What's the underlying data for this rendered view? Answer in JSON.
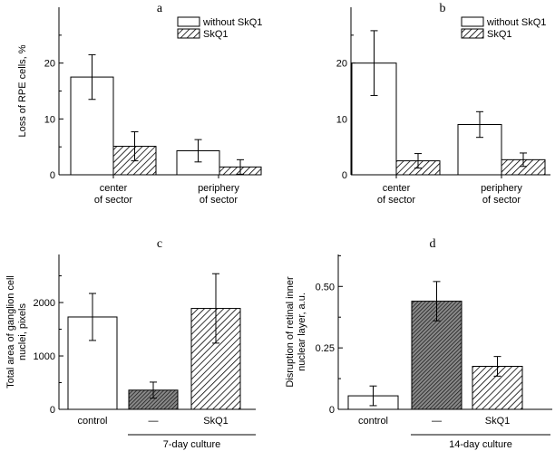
{
  "chart_data": [
    {
      "id": "a",
      "type": "bar",
      "panel_label": "a",
      "ylabel": "Loss of RPE cells, %",
      "ylim": [
        0,
        30
      ],
      "yticks": [
        0,
        10,
        20
      ],
      "categories": [
        [
          "center",
          "of sector"
        ],
        [
          "periphery",
          "of sector"
        ]
      ],
      "series": [
        {
          "name": "without SkQ1",
          "pattern": "open",
          "values": [
            17.5,
            4.3
          ],
          "errors": [
            4.0,
            2.0
          ]
        },
        {
          "name": "SkQ1",
          "pattern": "hatch",
          "values": [
            5.1,
            1.4
          ],
          "errors": [
            2.6,
            1.3
          ]
        }
      ],
      "legend": "top-right",
      "legend_items": [
        "without SkQ1",
        "SkQ1"
      ]
    },
    {
      "id": "b",
      "type": "bar",
      "panel_label": "b",
      "ylabel": "",
      "ylim": [
        0,
        30
      ],
      "yticks": [
        0,
        10,
        20
      ],
      "categories": [
        [
          "center",
          "of sector"
        ],
        [
          "periphery",
          "of sector"
        ]
      ],
      "series": [
        {
          "name": "without SkQ1",
          "pattern": "open",
          "values": [
            20.0,
            9.0
          ],
          "errors": [
            5.8,
            2.3
          ]
        },
        {
          "name": "SkQ1",
          "pattern": "hatch",
          "values": [
            2.5,
            2.7
          ],
          "errors": [
            1.3,
            1.2
          ]
        }
      ],
      "legend": "top-right",
      "legend_items": [
        "without SkQ1",
        "SkQ1"
      ]
    },
    {
      "id": "c",
      "type": "bar",
      "panel_label": "c",
      "ylabel": [
        "Total area of ganglion cell",
        "nuclei, pixels"
      ],
      "ylim": [
        0,
        2900
      ],
      "yticks": [
        0,
        1000,
        2000
      ],
      "categories": [
        "control",
        "—",
        "SkQ1"
      ],
      "bar_patterns": [
        "open",
        "dense",
        "hatch"
      ],
      "values": [
        1730,
        360,
        1890
      ],
      "errors": [
        440,
        150,
        650
      ],
      "group_label": "7-day culture"
    },
    {
      "id": "d",
      "type": "bar",
      "panel_label": "d",
      "ylabel": [
        "Disruption of retinal inner",
        "nuclear layer, a.u."
      ],
      "ylim": [
        0,
        0.63
      ],
      "yticks": [
        0,
        0.25,
        0.5
      ],
      "ytick_labels": [
        "0",
        "0.25",
        "0.50"
      ],
      "categories": [
        "control",
        "—",
        "SkQ1"
      ],
      "bar_patterns": [
        "open",
        "dense",
        "hatch"
      ],
      "values": [
        0.055,
        0.44,
        0.175
      ],
      "errors": [
        0.04,
        0.08,
        0.04
      ],
      "group_label": "14-day culture"
    }
  ]
}
